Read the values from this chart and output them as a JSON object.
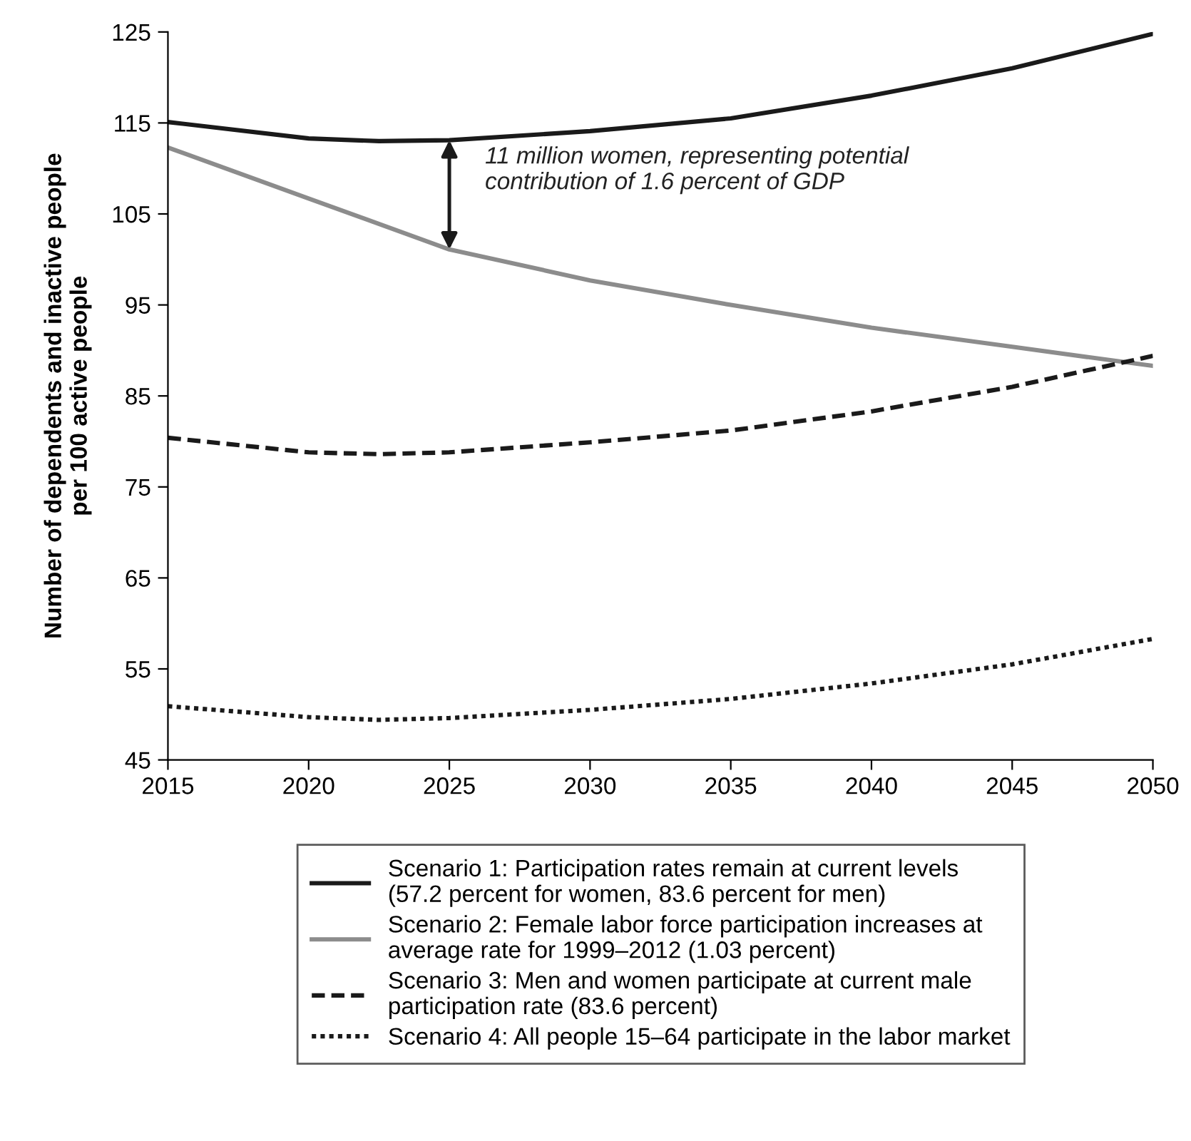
{
  "chart_data": {
    "type": "line",
    "ylabel": "Number of dependents and inactive people\nper 100 active people",
    "x": [
      2015,
      2020,
      2022.5,
      2025,
      2030,
      2035,
      2040,
      2045,
      2050
    ],
    "series": [
      {
        "name": "Scenario 1: Participation rates remain at current levels\n(57.2 percent for women, 83.6 percent for men)",
        "color": "#1a1a1a",
        "line_style": "solid",
        "values": [
          115.1,
          113.3,
          113.0,
          113.1,
          114.1,
          115.5,
          118.0,
          121.0,
          124.8
        ]
      },
      {
        "name": "Scenario 2: Female labor force participation increases at\naverage rate for 1999–2012 (1.03 percent)",
        "color": "#8c8c8c",
        "line_style": "solid",
        "values": [
          112.3,
          106.7,
          null,
          101.1,
          97.7,
          95.0,
          92.5,
          90.4,
          88.3
        ]
      },
      {
        "name": "Scenario 3: Men and women participate at current male\nparticipation rate (83.6 percent)",
        "color": "#1a1a1a",
        "line_style": "dashed",
        "values": [
          80.4,
          78.8,
          78.6,
          78.8,
          79.9,
          81.2,
          83.3,
          86.0,
          89.4
        ]
      },
      {
        "name": "Scenario 4: All people 15–64 participate in the labor market",
        "color": "#1a1a1a",
        "line_style": "dotted",
        "values": [
          50.9,
          49.7,
          49.4,
          49.6,
          50.5,
          51.7,
          53.4,
          55.5,
          58.3
        ]
      }
    ],
    "xlim": [
      2015,
      2050
    ],
    "xticks": [
      2015,
      2020,
      2025,
      2030,
      2035,
      2040,
      2045,
      2050
    ],
    "ylim": [
      45,
      125
    ],
    "yticks": [
      45,
      55,
      65,
      75,
      85,
      95,
      105,
      115,
      125
    ],
    "annotations": [
      {
        "text": "11 million women, representing potential\ncontribution of 1.6 percent of GDP",
        "x": 2025,
        "y": 101.1
      }
    ],
    "grid": false,
    "legend": "bottom",
    "marker": "none"
  }
}
